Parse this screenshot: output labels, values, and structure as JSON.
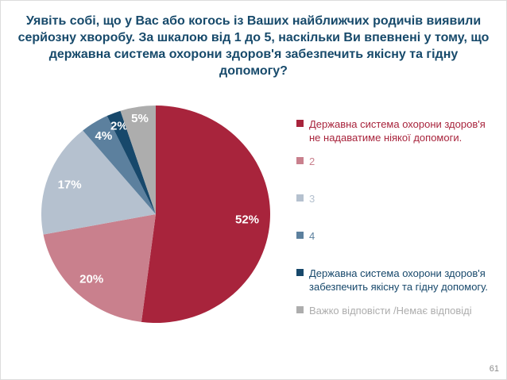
{
  "slide": {
    "title": "Уявіть собі, що у Вас або когось із Ваших найближчих родичів виявили серйозну хворобу. За шкалою від 1 до 5, наскільки Ви впевнені у тому, що державна система охорони здоров'я забезпечить якісну та гідну допомогу?",
    "title_color": "#174A6B",
    "page_number": "61"
  },
  "chart_data": {
    "type": "pie",
    "title": "",
    "start_angle_deg": 0,
    "direction": "clockwise",
    "categories": [
      "Державна система охорони здоров'я не надаватиме ніякої допомоги.",
      "2",
      "3",
      "4",
      "Державна система охорони здоров'я забезпечить якісну та гідну допомогу.",
      "Важко відповісти /Немає відповіді"
    ],
    "values": [
      52,
      20,
      17,
      4,
      2,
      5
    ],
    "unit": "%",
    "data_labels": [
      "52%",
      "20%",
      "17%",
      "4%",
      "2%",
      "5%"
    ],
    "colors": [
      "#A8243C",
      "#C9808D",
      "#B5C1CF",
      "#5C809E",
      "#17486B",
      "#ADADAD"
    ],
    "label_color": "#ffffff",
    "label_radius_factors": [
      0.8,
      0.82,
      0.8,
      0.85,
      0.87,
      0.89
    ],
    "legend_position": "right"
  }
}
